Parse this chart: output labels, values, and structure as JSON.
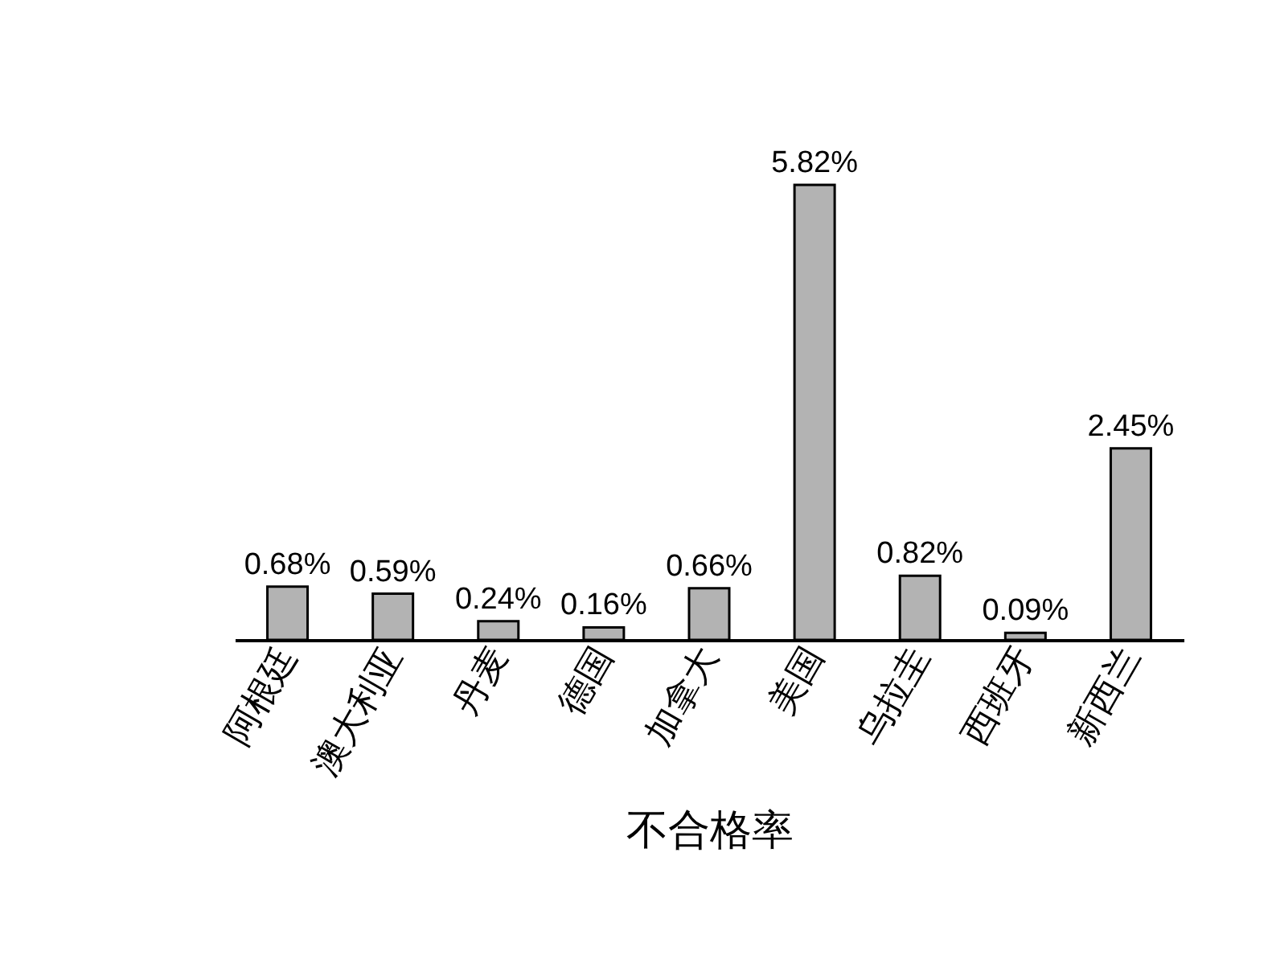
{
  "chart_data": {
    "type": "bar",
    "xlabel": "不合格率",
    "categories": [
      "阿根廷",
      "澳大利亚",
      "丹麦",
      "德国",
      "加拿大",
      "美国",
      "乌拉圭",
      "西班牙",
      "新西兰"
    ],
    "values": [
      0.68,
      0.59,
      0.24,
      0.16,
      0.66,
      5.82,
      0.82,
      0.09,
      2.45
    ],
    "value_labels": [
      "0.68%",
      "0.59%",
      "0.24%",
      "0.16%",
      "0.66%",
      "5.82%",
      "0.82%",
      "0.09%",
      "2.45%"
    ],
    "color": "#b3b3b3",
    "grid": false
  }
}
